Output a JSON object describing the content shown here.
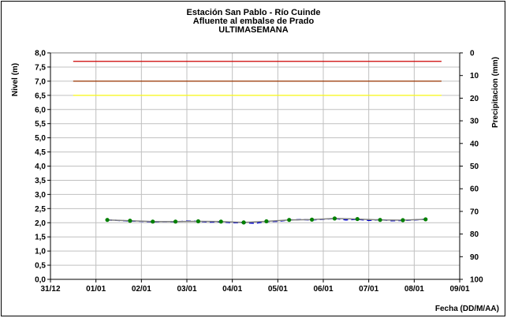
{
  "chart_data": {
    "type": "line",
    "title_lines": [
      "Estación San Pablo - Río Cuinde",
      "Afluente al embalse de Prado",
      "ULTIMASEMANA"
    ],
    "xlabel": "Fecha (DD/M/AA)",
    "ylabel": "Nivel (m)",
    "y2label": "Precipitacion (mm)",
    "x_ticks": [
      "31/12",
      "01/01",
      "02/01",
      "03/01",
      "04/01",
      "05/01",
      "06/01",
      "07/01",
      "08/01",
      "09/01"
    ],
    "xlim": [
      0,
      9
    ],
    "ylim": [
      0,
      8
    ],
    "y_ticks": [
      "0,0",
      "0,5",
      "1,0",
      "1,5",
      "2,0",
      "2,5",
      "3,0",
      "3,5",
      "4,0",
      "4,5",
      "5,0",
      "5,5",
      "6,0",
      "6,5",
      "7,0",
      "7,5",
      "8,0"
    ],
    "y2lim": [
      0,
      100
    ],
    "y2_ticks": [
      "0",
      "10",
      "20",
      "30",
      "40",
      "50",
      "60",
      "70",
      "80",
      "90",
      "100"
    ],
    "grid": true,
    "thresholds": [
      {
        "value": 7.7,
        "color": "#cc0000"
      },
      {
        "value": 7.0,
        "color": "#993300"
      },
      {
        "value": 6.5,
        "color": "#ffff00"
      }
    ],
    "thresholds_xrange": [
      0.5,
      8.6
    ],
    "series": [
      {
        "color": "#0000cc",
        "style": "dashed",
        "x": [
          1.25,
          1.5,
          1.75,
          2.0,
          2.25,
          2.5,
          2.75,
          3.0,
          3.25,
          3.5,
          3.75,
          4.0,
          4.25,
          4.5,
          4.75,
          5.0,
          5.25,
          5.5,
          5.75,
          6.0,
          6.25,
          6.5,
          6.75,
          7.0,
          7.25,
          7.5,
          7.75,
          8.0,
          8.25
        ],
        "y": [
          2.1,
          2.08,
          2.06,
          2.05,
          2.03,
          2.04,
          2.03,
          2.06,
          2.05,
          2.02,
          2.03,
          2.0,
          2.0,
          1.98,
          2.04,
          2.05,
          2.1,
          2.11,
          2.1,
          2.12,
          2.15,
          2.1,
          2.12,
          2.08,
          2.11,
          2.07,
          2.08,
          2.1,
          2.12
        ]
      },
      {
        "color": "#808080",
        "marker_color": "#008000",
        "x": [
          1.25,
          1.75,
          2.25,
          2.75,
          3.25,
          3.75,
          4.25,
          4.75,
          5.25,
          5.75,
          6.25,
          6.75,
          7.25,
          7.75,
          8.25
        ],
        "y": [
          2.1,
          2.07,
          2.04,
          2.04,
          2.05,
          2.04,
          2.01,
          2.05,
          2.1,
          2.11,
          2.15,
          2.13,
          2.1,
          2.09,
          2.12
        ]
      }
    ]
  }
}
